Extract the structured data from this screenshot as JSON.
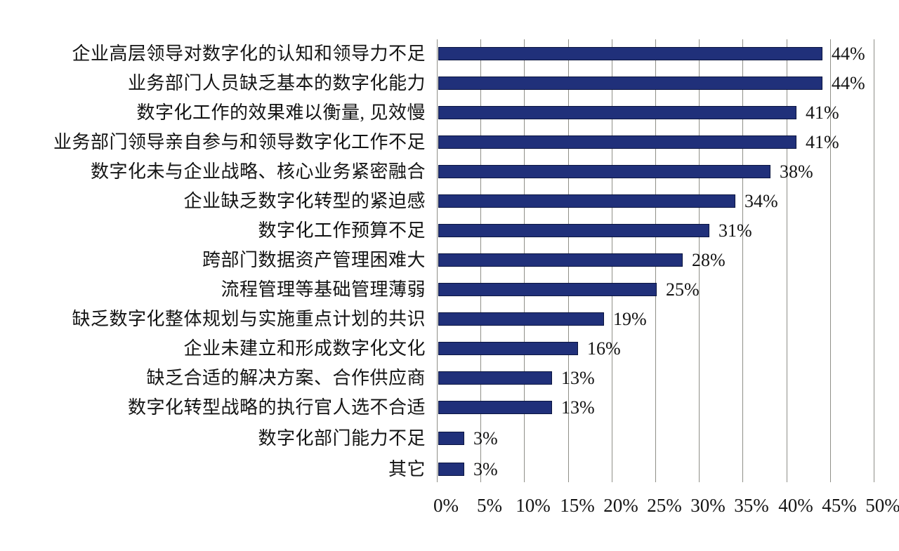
{
  "chart_data": {
    "type": "bar",
    "orientation": "horizontal",
    "title": "",
    "xlabel": "",
    "ylabel": "",
    "xlim": [
      0,
      50
    ],
    "grid": true,
    "legend": false,
    "bar_color": "#20307a",
    "categories": [
      "企业高层领导对数字化的认知和领导力不足",
      "业务部门人员缺乏基本的数字化能力",
      "数字化工作的效果难以衡量, 见效慢",
      "业务部门领导亲自参与和领导数字化工作不足",
      "数字化未与企业战略、核心业务紧密融合",
      "企业缺乏数字化转型的紧迫感",
      "数字化工作预算不足",
      "跨部门数据资产管理困难大",
      "流程管理等基础管理薄弱",
      "缺乏数字化整体规划与实施重点计划的共识",
      "企业未建立和形成数字化文化",
      "缺乏合适的解决方案、合作供应商",
      "数字化转型战略的执行官人选不合适",
      "数字化部门能力不足",
      "其它"
    ],
    "values": [
      44,
      44,
      41,
      41,
      38,
      34,
      31,
      28,
      25,
      19,
      16,
      13,
      13,
      3,
      3
    ],
    "value_labels": [
      "44%",
      "44%",
      "41%",
      "41%",
      "38%",
      "34%",
      "31%",
      "28%",
      "25%",
      "19%",
      "16%",
      "13%",
      "13%",
      "3%",
      "3%"
    ],
    "x_ticks": [
      "0%",
      "5%",
      "10%",
      "15%",
      "20%",
      "25%",
      "30%",
      "35%",
      "40%",
      "45%",
      "50%"
    ]
  }
}
